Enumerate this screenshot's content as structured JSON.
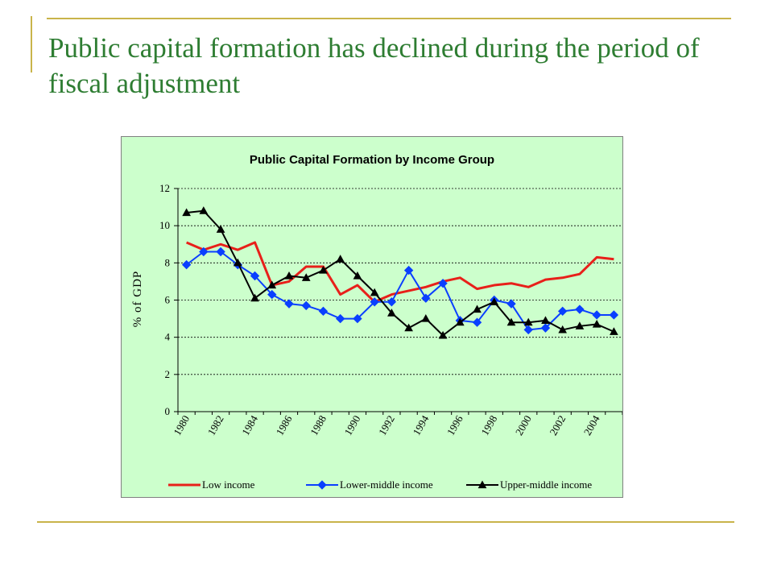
{
  "slide": {
    "title": "Public capital formation has declined during the period of fiscal adjustment",
    "accent_color": "#c9b44a",
    "title_color": "#2e7d32"
  },
  "chart_data": {
    "type": "line",
    "title": "Public Capital Formation by Income Group",
    "ylabel": "% of GDP",
    "xlabel": "",
    "ylim": [
      0,
      12
    ],
    "yticks": [
      0,
      2,
      4,
      6,
      8,
      10,
      12
    ],
    "xtick_labels": [
      "1980",
      "1982",
      "1984",
      "1986",
      "1988",
      "1990",
      "1992",
      "1994",
      "1996",
      "1998",
      "2000",
      "2002",
      "2004"
    ],
    "x": [
      1980,
      1981,
      1982,
      1983,
      1984,
      1985,
      1986,
      1987,
      1988,
      1989,
      1990,
      1991,
      1992,
      1993,
      1994,
      1995,
      1996,
      1997,
      1998,
      1999,
      2000,
      2001,
      2002,
      2003,
      2004,
      2005
    ],
    "grid": true,
    "legend_position": "bottom",
    "background_color": "#ccffcc",
    "series": [
      {
        "name": "Low income",
        "color": "#e8201a",
        "marker": "none",
        "values": [
          9.1,
          8.7,
          9.0,
          8.7,
          9.1,
          6.8,
          7.0,
          7.8,
          7.8,
          6.3,
          6.8,
          5.9,
          6.3,
          6.5,
          6.7,
          7.0,
          7.2,
          6.6,
          6.8,
          6.9,
          6.7,
          7.1,
          7.2,
          7.4,
          8.3,
          8.2
        ]
      },
      {
        "name": "Lower-middle income",
        "color": "#0a3fff",
        "marker": "diamond",
        "values": [
          7.9,
          8.6,
          8.6,
          7.9,
          7.3,
          6.3,
          5.8,
          5.7,
          5.4,
          5.0,
          5.0,
          5.9,
          5.9,
          7.6,
          6.1,
          6.9,
          4.9,
          4.8,
          6.0,
          5.8,
          4.4,
          4.5,
          5.4,
          5.5,
          5.2,
          5.2
        ]
      },
      {
        "name": "Upper-middle income",
        "color": "#000000",
        "marker": "triangle",
        "values": [
          10.7,
          10.8,
          9.8,
          8.0,
          6.1,
          6.8,
          7.3,
          7.2,
          7.6,
          8.2,
          7.3,
          6.4,
          5.3,
          4.5,
          5.0,
          4.1,
          4.8,
          5.5,
          5.9,
          4.8,
          4.8,
          4.9,
          4.4,
          4.6,
          4.7,
          4.3
        ]
      }
    ]
  }
}
